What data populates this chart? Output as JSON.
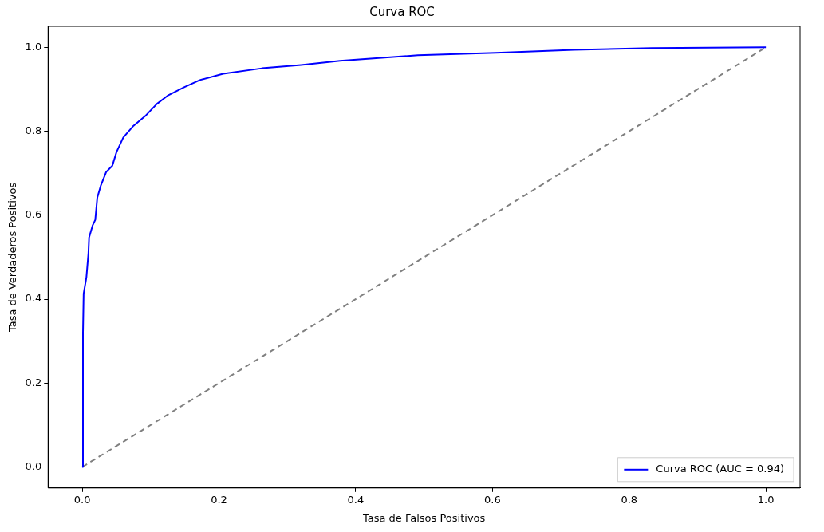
{
  "chart_data": {
    "type": "line",
    "title": "Curva ROC",
    "xlabel": "Tasa de Falsos Positivos",
    "ylabel": "Tasa de Verdaderos Positivos",
    "xlim": [
      -0.05,
      1.05
    ],
    "ylim": [
      -0.05,
      1.05
    ],
    "xticks": [
      {
        "value": 0,
        "label": "0.0"
      },
      {
        "value": 0.2,
        "label": "0.2"
      },
      {
        "value": 0.4,
        "label": "0.4"
      },
      {
        "value": 0.6,
        "label": "0.6"
      },
      {
        "value": 0.8,
        "label": "0.8"
      },
      {
        "value": 1,
        "label": "1.0"
      }
    ],
    "yticks": [
      {
        "value": 0,
        "label": "0.0"
      },
      {
        "value": 0.2,
        "label": "0.2"
      },
      {
        "value": 0.4,
        "label": "0.4"
      },
      {
        "value": 0.6,
        "label": "0.6"
      },
      {
        "value": 0.8,
        "label": "0.8"
      },
      {
        "value": 1,
        "label": "1.0"
      }
    ],
    "grid": false,
    "legend": "bottom right",
    "marker": "none",
    "series": [
      {
        "name": "Curva ROC (AUC = 0.94)",
        "color": "#0000ff",
        "line_style": "solid",
        "x": [
          0,
          0.001,
          0.002,
          0.006,
          0.009,
          0.01,
          0.015,
          0.019,
          0.022,
          0.027,
          0.035,
          0.044,
          0.05,
          0.06,
          0.075,
          0.092,
          0.109,
          0.126,
          0.149,
          0.172,
          0.206,
          0.263,
          0.32,
          0.377,
          0.491,
          0.605,
          0.719,
          0.833,
          1
        ],
        "values": [
          0,
          0.318,
          0.413,
          0.451,
          0.509,
          0.547,
          0.575,
          0.589,
          0.642,
          0.67,
          0.703,
          0.718,
          0.75,
          0.785,
          0.813,
          0.836,
          0.865,
          0.886,
          0.905,
          0.922,
          0.937,
          0.95,
          0.958,
          0.968,
          0.981,
          0.987,
          0.994,
          0.998,
          1
        ]
      },
      {
        "color": "#808080",
        "line_style": "dashed",
        "x": [
          0,
          1
        ],
        "values": [
          0,
          1
        ]
      }
    ]
  }
}
